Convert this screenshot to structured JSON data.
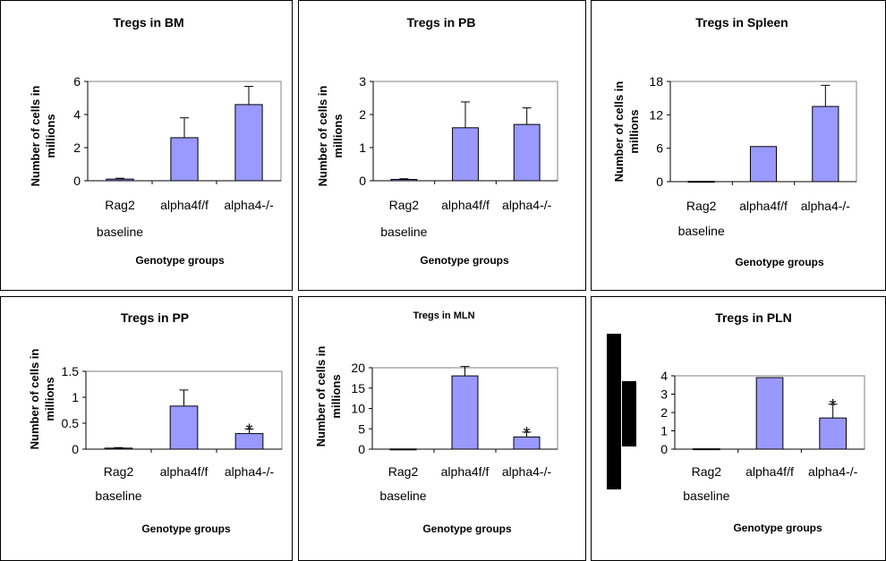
{
  "chart_data": [
    {
      "type": "bar",
      "title": "Tregs in BM",
      "ylabel": "Number of cells in millions",
      "xlabel": "Genotype groups",
      "categories": [
        "Rag2 baseline",
        "alpha4f/f",
        "alpha4-/-"
      ],
      "values": [
        0.1,
        2.6,
        4.6
      ],
      "error_upper": [
        0.05,
        1.2,
        1.1
      ],
      "yticks": [
        "0",
        "2",
        "4",
        "6"
      ],
      "ylim": [
        0,
        6
      ],
      "significance": [
        "",
        "",
        ""
      ]
    },
    {
      "type": "bar",
      "title": "Tregs in PB",
      "ylabel": "Number of cells in millions",
      "xlabel": "Genotype groups",
      "categories": [
        "Rag2 baseline",
        "alpha4f/f",
        "alpha4-/-"
      ],
      "values": [
        0.04,
        1.6,
        1.7
      ],
      "error_upper": [
        0.02,
        0.78,
        0.5
      ],
      "yticks": [
        "0",
        "1",
        "2",
        "3"
      ],
      "ylim": [
        0,
        3
      ],
      "significance": [
        "",
        "",
        ""
      ]
    },
    {
      "type": "bar",
      "title": "Tregs  in Spleen",
      "ylabel": "Number of cells in millions",
      "xlabel": "Genotype groups",
      "categories": [
        "Rag2 baseline",
        "alpha4f/f",
        "alpha4-/-"
      ],
      "values": [
        0.05,
        6.3,
        13.5
      ],
      "error_upper": [
        0,
        0,
        3.8
      ],
      "yticks": [
        "0",
        "6",
        "12",
        "18"
      ],
      "ylim": [
        0,
        18
      ],
      "significance": [
        "",
        "",
        ""
      ]
    },
    {
      "type": "bar",
      "title": "Tregs  in PP",
      "ylabel": "Number of cells in millions",
      "xlabel": "Genotype groups",
      "categories": [
        "Rag2 baseline",
        "alpha4f/f",
        "alpha4-/-"
      ],
      "values": [
        0.02,
        0.83,
        0.3
      ],
      "error_upper": [
        0.01,
        0.31,
        0.09
      ],
      "yticks": [
        "0",
        "0.5",
        "1",
        "1.5"
      ],
      "ylim": [
        0,
        1.5
      ],
      "significance": [
        "",
        "",
        "*"
      ]
    },
    {
      "type": "bar",
      "title": "Tregs  in MLN",
      "ylabel": "Number of cells in millions",
      "xlabel": "Genotype groups",
      "categories": [
        "Rag2 baseline",
        "alpha4f/f",
        "alpha4-/-"
      ],
      "values": [
        0.05,
        18,
        3
      ],
      "error_upper": [
        0,
        2.3,
        1.2
      ],
      "yticks": [
        "0",
        "5",
        "10",
        "15",
        "20"
      ],
      "ylim": [
        0,
        20
      ],
      "significance": [
        "",
        "",
        "*"
      ]
    },
    {
      "type": "bar",
      "title": "Tregs  in PLN",
      "ylabel": "",
      "xlabel": "Genotype groups",
      "categories": [
        "Rag2 baseline",
        "alpha4f/f",
        "alpha4-/-"
      ],
      "values": [
        0.02,
        3.9,
        1.7
      ],
      "error_upper": [
        0,
        0,
        0.75
      ],
      "yticks": [
        "0",
        "1",
        "2",
        "3",
        "4"
      ],
      "ylim": [
        0,
        4
      ],
      "significance": [
        "",
        "",
        "*"
      ]
    }
  ],
  "colors": {
    "bar_fill": "#9999ff",
    "bar_stroke": "#000000",
    "redaction": "#000000"
  }
}
